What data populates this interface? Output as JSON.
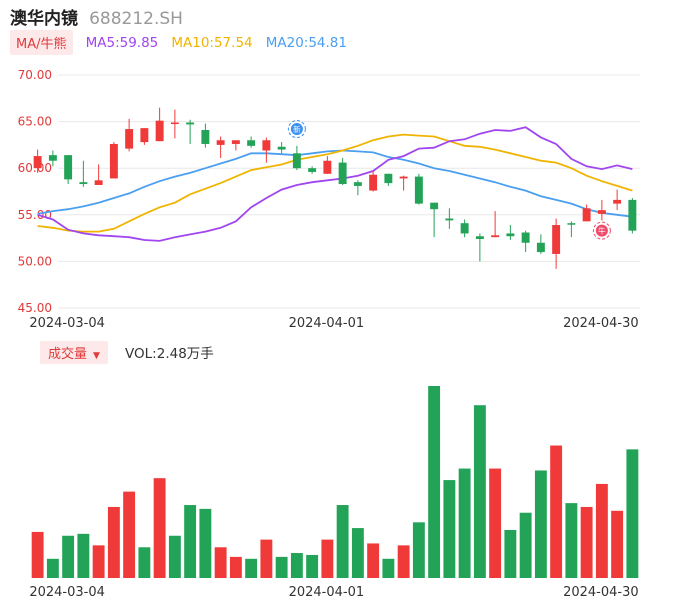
{
  "header": {
    "name": "澳华内镜",
    "code": "688212.SH"
  },
  "ma_row": {
    "tag": "MA/牛熊",
    "ma5": "MA5:59.85",
    "ma10": "MA10:57.54",
    "ma20": "MA20:54.81"
  },
  "volume_row": {
    "tag": "成交量",
    "caret": "▼",
    "label": "VOL:2.48万手"
  },
  "colors": {
    "up": "#f03a3a",
    "down": "#22a357",
    "ma5": "#a045f0",
    "ma10": "#f0b400",
    "ma20": "#4a9ff0",
    "axis_label": "#e03a3a"
  },
  "markers": {
    "new_icon_text": "新",
    "niu_icon_text": "牛"
  },
  "chart_data": [
    {
      "type": "candlestick",
      "ylim": [
        45,
        70
      ],
      "yticks": [
        "70.00",
        "65.00",
        "60.00",
        "55.00",
        "50.00",
        "45.00"
      ],
      "xticks": [
        "2024-03-04",
        "2024-04-01",
        "2024-04-30"
      ],
      "candles": [
        [
          60.0,
          61.3,
          62.0,
          59.5
        ],
        [
          61.4,
          60.8,
          61.9,
          60.2
        ],
        [
          61.4,
          58.8,
          61.4,
          58.3
        ],
        [
          58.5,
          58.3,
          60.8,
          58.0
        ],
        [
          58.2,
          58.7,
          60.4,
          58.2
        ],
        [
          58.9,
          62.6,
          62.8,
          58.9
        ],
        [
          62.1,
          64.2,
          65.3,
          61.8
        ],
        [
          62.8,
          64.3,
          64.3,
          62.5
        ],
        [
          62.9,
          65.1,
          66.5,
          62.9
        ],
        [
          64.8,
          64.9,
          66.3,
          63.2
        ],
        [
          64.9,
          64.7,
          65.2,
          62.6
        ],
        [
          64.1,
          62.6,
          64.8,
          62.2
        ],
        [
          62.5,
          63.0,
          63.4,
          61.1
        ],
        [
          62.6,
          63.0,
          63.0,
          61.9
        ],
        [
          63.0,
          62.4,
          63.4,
          62.2
        ],
        [
          61.9,
          63.0,
          63.3,
          60.6
        ],
        [
          62.3,
          62.0,
          62.8,
          61.6
        ],
        [
          61.6,
          60.0,
          62.4,
          59.8
        ],
        [
          60.0,
          59.6,
          60.2,
          59.4
        ],
        [
          59.4,
          60.8,
          61.3,
          59.4
        ],
        [
          60.6,
          58.3,
          61.1,
          58.2
        ],
        [
          58.5,
          58.1,
          58.7,
          57.1
        ],
        [
          57.6,
          59.3,
          59.7,
          57.5
        ],
        [
          59.4,
          58.4,
          59.4,
          58.1
        ],
        [
          58.9,
          59.1,
          59.2,
          57.6
        ],
        [
          59.1,
          56.2,
          59.4,
          56.1
        ],
        [
          56.3,
          55.6,
          56.3,
          52.6
        ],
        [
          54.6,
          54.4,
          55.7,
          53.5
        ],
        [
          54.1,
          53.0,
          54.5,
          52.6
        ],
        [
          52.7,
          52.4,
          53.0,
          50.0
        ],
        [
          52.6,
          52.8,
          55.4,
          52.6
        ],
        [
          53.0,
          52.7,
          53.9,
          52.3
        ],
        [
          53.1,
          52.0,
          53.3,
          51.0
        ],
        [
          52.0,
          51.0,
          52.9,
          50.8
        ],
        [
          50.8,
          53.9,
          54.6,
          49.2
        ],
        [
          54.1,
          54.0,
          54.3,
          52.6
        ],
        [
          54.3,
          55.7,
          56.1,
          54.3
        ],
        [
          55.1,
          55.5,
          56.6,
          54.4
        ],
        [
          56.2,
          56.6,
          57.7,
          55.5
        ],
        [
          56.6,
          53.3,
          56.8,
          53.0
        ]
      ],
      "ma5": [
        55.0,
        54.5,
        53.4,
        53.0,
        52.8,
        52.7,
        52.6,
        52.3,
        52.2,
        52.6,
        52.9,
        53.2,
        53.6,
        54.3,
        55.8,
        56.8,
        57.7,
        58.2,
        58.5,
        58.7,
        58.9,
        59.2,
        59.7,
        60.9,
        61.3,
        62.1,
        62.2,
        62.9,
        63.1,
        63.7,
        64.1,
        64.0,
        64.4,
        63.3,
        62.6,
        61.0,
        60.2,
        59.9,
        60.3,
        59.9
      ],
      "ma10": [
        53.8,
        53.6,
        53.3,
        53.2,
        53.2,
        53.5,
        54.3,
        55.1,
        55.8,
        56.3,
        57.2,
        57.8,
        58.4,
        59.1,
        59.8,
        60.1,
        60.4,
        60.9,
        61.2,
        61.5,
        61.9,
        62.4,
        63.0,
        63.4,
        63.6,
        63.5,
        63.4,
        62.9,
        62.4,
        62.3,
        62.0,
        61.6,
        61.2,
        60.8,
        60.6,
        60.0,
        59.2,
        58.6,
        58.1,
        57.6
      ],
      "ma20": [
        55.1,
        55.4,
        55.6,
        55.9,
        56.3,
        56.8,
        57.3,
        58.0,
        58.6,
        59.1,
        59.5,
        60.0,
        60.5,
        61.0,
        61.6,
        61.6,
        61.5,
        61.4,
        61.6,
        61.8,
        61.9,
        61.8,
        61.7,
        61.2,
        60.9,
        60.5,
        60.0,
        59.7,
        59.3,
        58.9,
        58.5,
        58.0,
        57.6,
        57.0,
        56.6,
        56.2,
        55.6,
        55.2,
        55.0,
        54.8
      ]
    },
    {
      "type": "bar",
      "ylim": [
        0,
        1
      ],
      "xticks": [
        "2024-03-04",
        "2024-04-01",
        "2024-04-30"
      ],
      "values": [
        0.24,
        0.1,
        0.22,
        0.23,
        0.17,
        0.37,
        0.45,
        0.16,
        0.52,
        0.22,
        0.38,
        0.36,
        0.16,
        0.11,
        0.1,
        0.2,
        0.11,
        0.13,
        0.12,
        0.2,
        0.38,
        0.26,
        0.18,
        0.1,
        0.17,
        0.29,
        1.0,
        0.51,
        0.57,
        0.9,
        0.57,
        0.25,
        0.34,
        0.56,
        0.69,
        0.39,
        0.37,
        0.49,
        0.35,
        0.67
      ],
      "up": [
        1,
        0,
        0,
        0,
        1,
        1,
        1,
        0,
        1,
        0,
        0,
        0,
        1,
        1,
        0,
        1,
        0,
        0,
        0,
        1,
        0,
        0,
        1,
        0,
        1,
        0,
        0,
        0,
        0,
        0,
        1,
        0,
        0,
        0,
        1,
        0,
        1,
        1,
        1,
        0
      ]
    }
  ]
}
